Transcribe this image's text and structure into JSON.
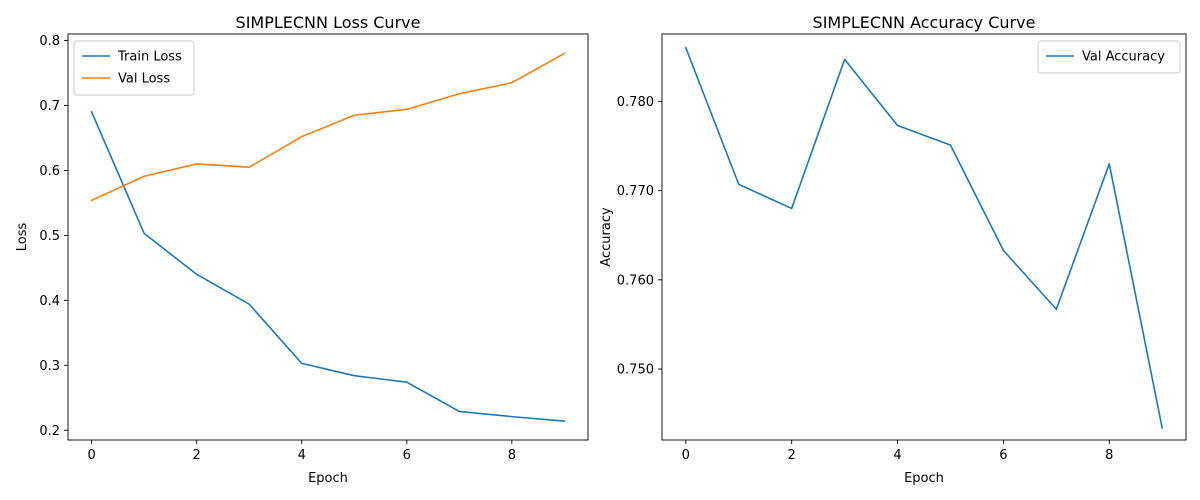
{
  "chart_data": [
    {
      "type": "line",
      "title": "SIMPLECNN Loss Curve",
      "xlabel": "Epoch",
      "ylabel": "Loss",
      "x": [
        0,
        1,
        2,
        3,
        4,
        5,
        6,
        7,
        8,
        9
      ],
      "xlim": [
        -0.45,
        9.45
      ],
      "ylim": [
        0.185,
        0.81
      ],
      "xticks": [
        0,
        2,
        4,
        6,
        8
      ],
      "yticks": [
        0.2,
        0.3,
        0.4,
        0.5,
        0.6,
        0.7,
        0.8
      ],
      "ytick_labels": [
        "0.2",
        "0.3",
        "0.4",
        "0.5",
        "0.6",
        "0.7",
        "0.8"
      ],
      "grid": false,
      "legend_position": "upper-left",
      "series": [
        {
          "name": "Train Loss",
          "color": "#1f77b4",
          "values": [
            0.69,
            0.503,
            0.44,
            0.394,
            0.303,
            0.284,
            0.274,
            0.229,
            0.221,
            0.214
          ]
        },
        {
          "name": "Val Loss",
          "color": "#ff7f0e",
          "values": [
            0.554,
            0.591,
            0.61,
            0.605,
            0.652,
            0.685,
            0.694,
            0.718,
            0.735,
            0.78
          ]
        }
      ]
    },
    {
      "type": "line",
      "title": "SIMPLECNN Accuracy Curve",
      "xlabel": "Epoch",
      "ylabel": "Accuracy",
      "x": [
        0,
        1,
        2,
        3,
        4,
        5,
        6,
        7,
        8,
        9
      ],
      "xlim": [
        -0.45,
        9.45
      ],
      "ylim": [
        0.74205,
        0.78755
      ],
      "xticks": [
        0,
        2,
        4,
        6,
        8
      ],
      "yticks": [
        0.75,
        0.76,
        0.77,
        0.78
      ],
      "ytick_labels": [
        "0.750",
        "0.760",
        "0.770",
        "0.780"
      ],
      "grid": false,
      "legend_position": "upper-right",
      "series": [
        {
          "name": "Val Accuracy",
          "color": "#1f77b4",
          "values": [
            0.786,
            0.7707,
            0.768,
            0.7847,
            0.7773,
            0.7751,
            0.7633,
            0.7567,
            0.773,
            0.7434
          ]
        }
      ]
    }
  ]
}
